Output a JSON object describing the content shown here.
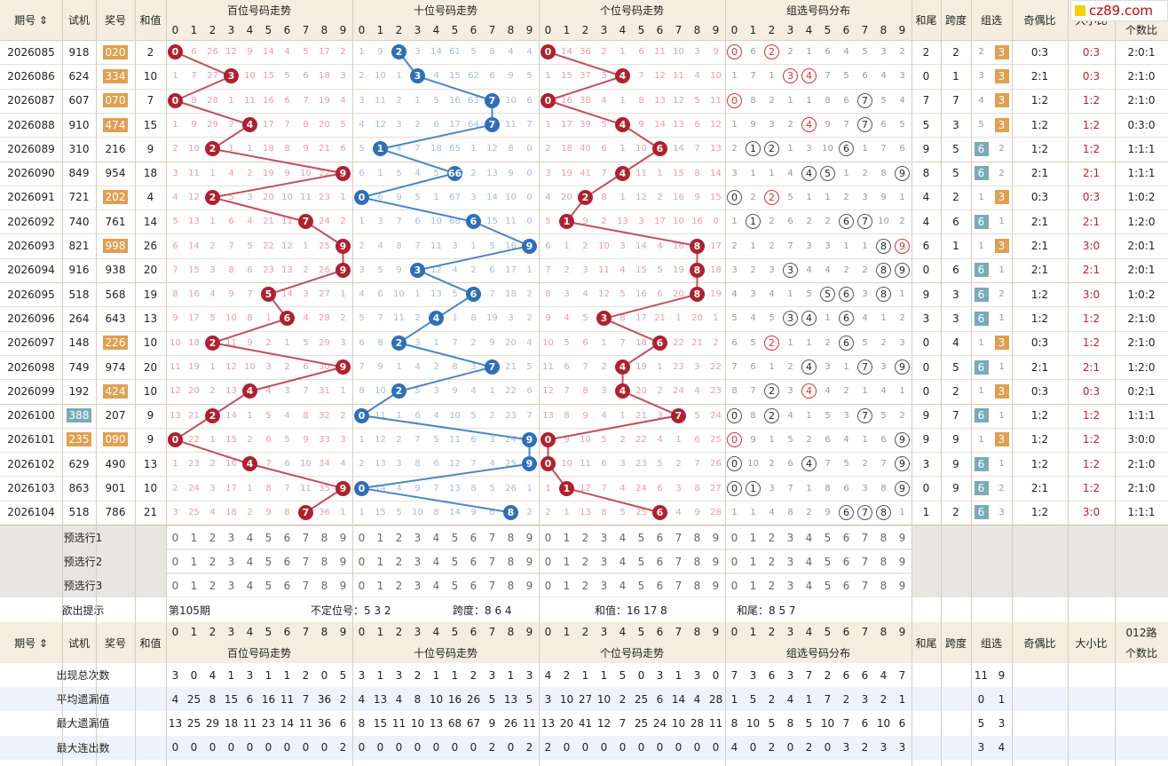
{
  "logo": "cz89.com",
  "colors": {
    "red_ball": "#b0202e",
    "blue_ball": "#2e6fb8",
    "red_line": "#c0505a",
    "blue_line": "#4a86c4",
    "tag_orange": "#e0a050",
    "tag_teal": "#7aaab8",
    "header_bg": "#f4ede0",
    "miss_red": "#e7a0a8",
    "miss_blue": "#a8bcd4",
    "miss_gray": "#999999",
    "alt_row": "#eef3fb"
  },
  "headers": {
    "period": "期号",
    "test": "试机",
    "prize": "奖号",
    "sum": "和值",
    "hundreds": "百位号码走势",
    "tens": "十位号码走势",
    "units": "个位号码走势",
    "group_dist": "组选号码分布",
    "sum_tail": "和尾",
    "span": "跨度",
    "group": "组选",
    "odd_even": "奇偶比",
    "big_small": "大小比",
    "road_l1": "012路",
    "road_l2": "个数比",
    "road_top": "个数比"
  },
  "digits": [
    "0",
    "1",
    "2",
    "3",
    "4",
    "5",
    "6",
    "7",
    "8",
    "9"
  ],
  "rows": [
    {
      "p": "2026085",
      "t": "918",
      "n": "020",
      "tn": "orange",
      "s": "2",
      "h": [
        0,
        6,
        26,
        12,
        9,
        14,
        4,
        5,
        17,
        2
      ],
      "te": [
        1,
        9,
        2,
        3,
        14,
        61,
        5,
        8,
        4,
        4
      ],
      "u": [
        0,
        14,
        36,
        2,
        1,
        6,
        11,
        10,
        3,
        9
      ],
      "g": [
        "c0",
        6,
        "c2",
        2,
        1,
        6,
        4,
        5,
        3,
        2
      ],
      "gr": "o",
      "tail": "2",
      "span": "2",
      "grp": [
        2,
        "3"
      ],
      "oe": "0:3",
      "bs": "0:3",
      "r": "2:0:1"
    },
    {
      "p": "2026086",
      "t": "624",
      "n": "334",
      "tn": "orange",
      "s": "10",
      "h": [
        1,
        7,
        27,
        3,
        10,
        15,
        5,
        6,
        18,
        3
      ],
      "te": [
        2,
        10,
        1,
        3,
        4,
        15,
        62,
        6,
        9,
        5
      ],
      "u": [
        1,
        15,
        37,
        3,
        4,
        7,
        12,
        11,
        4,
        10
      ],
      "g": [
        1,
        7,
        1,
        "c3",
        "c4",
        7,
        5,
        6,
        4,
        3
      ],
      "gr": "o",
      "tail": "0",
      "span": "1",
      "grp": [
        3,
        "3"
      ],
      "oe": "2:1",
      "bs": "0:3",
      "r": "2:1:0"
    },
    {
      "p": "2026087",
      "t": "607",
      "n": "070",
      "tn": "orange",
      "s": "7",
      "h": [
        0,
        8,
        28,
        1,
        11,
        16,
        6,
        7,
        19,
        4
      ],
      "te": [
        3,
        11,
        2,
        1,
        5,
        16,
        63,
        7,
        10,
        6
      ],
      "u": [
        0,
        16,
        38,
        4,
        1,
        8,
        13,
        12,
        5,
        11
      ],
      "g": [
        "c0",
        8,
        2,
        1,
        1,
        8,
        6,
        "k7",
        5,
        4
      ],
      "gr": "o",
      "tail": "7",
      "span": "7",
      "grp": [
        4,
        "3"
      ],
      "oe": "1:2",
      "bs": "1:2",
      "r": "2:1:0"
    },
    {
      "p": "2026088",
      "t": "910",
      "n": "474",
      "tn": "orange",
      "s": "15",
      "h": [
        1,
        9,
        29,
        2,
        4,
        17,
        7,
        8,
        20,
        5
      ],
      "te": [
        4,
        12,
        3,
        2,
        6,
        17,
        64,
        7,
        11,
        7
      ],
      "u": [
        1,
        17,
        39,
        5,
        4,
        9,
        14,
        13,
        6,
        12
      ],
      "g": [
        1,
        9,
        3,
        2,
        "c4",
        9,
        7,
        "k7",
        6,
        5
      ],
      "gr": "o",
      "tail": "5",
      "span": "3",
      "grp": [
        5,
        "3"
      ],
      "oe": "1:2",
      "bs": "1:2",
      "r": "0:3:0"
    },
    {
      "p": "2026089",
      "t": "310",
      "n": "216",
      "tn": "none",
      "s": "9",
      "h": [
        2,
        10,
        2,
        1,
        1,
        18,
        8,
        9,
        21,
        6
      ],
      "te": [
        5,
        1,
        4,
        7,
        18,
        65,
        1,
        12,
        8,
        0
      ],
      "u": [
        2,
        18,
        40,
        6,
        1,
        10,
        6,
        14,
        7,
        13
      ],
      "g": [
        2,
        "k1",
        "k2",
        1,
        3,
        10,
        "k6",
        1,
        7,
        6
      ],
      "gr": "t",
      "tail": "9",
      "span": "5",
      "grp": [
        "6",
        2
      ],
      "oe": "1:2",
      "bs": "1:2",
      "r": "1:1:1"
    },
    {
      "p": "2026090",
      "t": "849",
      "n": "954",
      "tn": "none",
      "s": "18",
      "h": [
        3,
        11,
        1,
        4,
        2,
        19,
        9,
        10,
        22,
        9
      ],
      "te": [
        6,
        1,
        5,
        4,
        5,
        66,
        2,
        13,
        9,
        0
      ],
      "u": [
        3,
        19,
        41,
        7,
        4,
        11,
        1,
        15,
        8,
        14
      ],
      "g": [
        3,
        1,
        1,
        4,
        "k4",
        "k5",
        1,
        2,
        8,
        "k9"
      ],
      "gr": "t",
      "tail": "8",
      "span": "5",
      "grp": [
        "6",
        2
      ],
      "oe": "2:1",
      "bs": "2:1",
      "r": "1:1:1"
    },
    {
      "p": "2026091",
      "t": "721",
      "n": "202",
      "tn": "orange",
      "s": "4",
      "h": [
        4,
        12,
        2,
        5,
        3,
        20,
        10,
        11,
        23,
        1
      ],
      "te": [
        0,
        6,
        9,
        5,
        1,
        67,
        3,
        14,
        10,
        0
      ],
      "u": [
        4,
        20,
        2,
        8,
        1,
        12,
        2,
        16,
        9,
        15
      ],
      "g": [
        "k0",
        2,
        "c2",
        5,
        1,
        1,
        2,
        3,
        9,
        1
      ],
      "gr": "o",
      "tail": "4",
      "span": "2",
      "grp": [
        1,
        "3"
      ],
      "oe": "0:3",
      "bs": "0:3",
      "r": "1:0:2"
    },
    {
      "p": "2026092",
      "t": "740",
      "n": "761",
      "tn": "none",
      "s": "14",
      "h": [
        5,
        13,
        1,
        6,
        4,
        21,
        11,
        7,
        24,
        2
      ],
      "te": [
        1,
        3,
        7,
        6,
        10,
        68,
        6,
        15,
        11,
        0
      ],
      "u": [
        5,
        1,
        9,
        2,
        13,
        3,
        17,
        10,
        16,
        0
      ],
      "g": [
        1,
        "k1",
        2,
        6,
        2,
        2,
        "k6",
        "k7",
        10,
        2
      ],
      "gr": "t",
      "tail": "4",
      "span": "6",
      "grp": [
        "6",
        1
      ],
      "oe": "2:1",
      "bs": "2:1",
      "r": "1:2:0"
    },
    {
      "p": "2026093",
      "t": "821",
      "n": "998",
      "tn": "orange",
      "s": "26",
      "h": [
        6,
        14,
        2,
        7,
        5,
        22,
        12,
        1,
        25,
        9
      ],
      "te": [
        2,
        4,
        8,
        7,
        11,
        3,
        1,
        5,
        16,
        9
      ],
      "u": [
        6,
        1,
        2,
        10,
        3,
        14,
        4,
        16,
        8,
        17
      ],
      "g": [
        2,
        1,
        2,
        7,
        3,
        3,
        1,
        1,
        "k8",
        "c9"
      ],
      "gr": "o",
      "tail": "6",
      "span": "1",
      "grp": [
        1,
        "3"
      ],
      "oe": "2:1",
      "bs": "3:0",
      "r": "2:0:1"
    },
    {
      "p": "2026094",
      "t": "916",
      "n": "938",
      "tn": "none",
      "s": "20",
      "h": [
        7,
        15,
        3,
        8,
        6,
        23,
        13,
        2,
        26,
        9
      ],
      "te": [
        3,
        5,
        9,
        3,
        12,
        4,
        2,
        6,
        17,
        1
      ],
      "u": [
        7,
        2,
        3,
        11,
        4,
        15,
        5,
        19,
        8,
        18
      ],
      "g": [
        3,
        2,
        3,
        "k3",
        4,
        4,
        2,
        2,
        "k8",
        "k9"
      ],
      "gr": "t",
      "tail": "0",
      "span": "6",
      "grp": [
        "6",
        1
      ],
      "oe": "2:1",
      "bs": "2:1",
      "r": "2:0:1"
    },
    {
      "p": "2026095",
      "t": "518",
      "n": "568",
      "tn": "none",
      "s": "19",
      "h": [
        8,
        16,
        4,
        9,
        7,
        5,
        14,
        3,
        27,
        1
      ],
      "te": [
        4,
        6,
        10,
        1,
        13,
        5,
        6,
        7,
        18,
        2
      ],
      "u": [
        8,
        3,
        4,
        12,
        5,
        16,
        6,
        20,
        8,
        19
      ],
      "g": [
        4,
        3,
        4,
        1,
        5,
        "k5",
        "k6",
        3,
        "k8",
        1
      ],
      "gr": "t",
      "tail": "9",
      "span": "3",
      "grp": [
        "6",
        2
      ],
      "oe": "1:2",
      "bs": "3:0",
      "r": "1:0:2"
    },
    {
      "p": "2026096",
      "t": "264",
      "n": "643",
      "tn": "none",
      "s": "13",
      "h": [
        9,
        17,
        5,
        10,
        8,
        1,
        6,
        4,
        28,
        2
      ],
      "te": [
        5,
        7,
        11,
        2,
        4,
        1,
        8,
        19,
        3,
        2
      ],
      "u": [
        9,
        4,
        5,
        3,
        8,
        17,
        21,
        1,
        20,
        1
      ],
      "g": [
        5,
        4,
        5,
        "k3",
        "k4",
        1,
        "k6",
        4,
        1,
        2
      ],
      "gr": "t",
      "tail": "3",
      "span": "3",
      "grp": [
        "6",
        1
      ],
      "oe": "1:2",
      "bs": "1:2",
      "r": "2:1:0"
    },
    {
      "p": "2026097",
      "t": "148",
      "n": "226",
      "tn": "orange",
      "s": "10",
      "h": [
        10,
        18,
        2,
        11,
        9,
        2,
        1,
        5,
        29,
        3
      ],
      "te": [
        6,
        8,
        2,
        3,
        1,
        7,
        2,
        9,
        20,
        4
      ],
      "u": [
        10,
        5,
        6,
        1,
        7,
        18,
        6,
        22,
        21,
        2
      ],
      "g": [
        6,
        5,
        "c2",
        1,
        1,
        2,
        "k6",
        5,
        2,
        3
      ],
      "gr": "o",
      "tail": "0",
      "span": "4",
      "grp": [
        1,
        "3"
      ],
      "oe": "0:3",
      "bs": "1:2",
      "r": "2:1:0"
    },
    {
      "p": "2026098",
      "t": "749",
      "n": "974",
      "tn": "none",
      "s": "20",
      "h": [
        11,
        19,
        1,
        12,
        10,
        3,
        2,
        6,
        30,
        9
      ],
      "te": [
        7,
        9,
        1,
        4,
        2,
        8,
        3,
        7,
        21,
        5
      ],
      "u": [
        11,
        6,
        7,
        2,
        4,
        19,
        1,
        23,
        3,
        22
      ],
      "g": [
        7,
        6,
        1,
        2,
        "k4",
        3,
        1,
        "k7",
        3,
        "k9"
      ],
      "gr": "t",
      "tail": "0",
      "span": "5",
      "grp": [
        "6",
        1
      ],
      "oe": "2:1",
      "bs": "2:1",
      "r": "1:2:0"
    },
    {
      "p": "2026099",
      "t": "192",
      "n": "424",
      "tn": "orange",
      "s": "10",
      "h": [
        12,
        20,
        2,
        13,
        4,
        4,
        3,
        7,
        31,
        1
      ],
      "te": [
        8,
        10,
        2,
        5,
        3,
        9,
        4,
        1,
        22,
        6
      ],
      "u": [
        12,
        7,
        8,
        3,
        4,
        20,
        2,
        24,
        4,
        23
      ],
      "g": [
        8,
        7,
        "k2",
        3,
        "c4",
        4,
        2,
        1,
        4,
        1
      ],
      "gr": "o",
      "tail": "0",
      "span": "2",
      "grp": [
        1,
        "3"
      ],
      "oe": "0:3",
      "bs": "0:3",
      "r": "0:2:1"
    },
    {
      "p": "2026100",
      "t": "388",
      "tt": "teal",
      "n": "207",
      "tn": "none",
      "s": "9",
      "h": [
        13,
        21,
        2,
        14,
        1,
        5,
        4,
        8,
        32,
        2
      ],
      "te": [
        0,
        11,
        1,
        6,
        4,
        10,
        5,
        2,
        23,
        7
      ],
      "u": [
        13,
        8,
        9,
        4,
        1,
        21,
        3,
        7,
        5,
        24
      ],
      "g": [
        "k0",
        8,
        "k2",
        4,
        1,
        5,
        3,
        "k7",
        5,
        2
      ],
      "gr": "t",
      "tail": "9",
      "span": "7",
      "grp": [
        "6",
        1
      ],
      "oe": "1:2",
      "bs": "1:2",
      "r": "1:1:1"
    },
    {
      "p": "2026101",
      "t": "235",
      "tt": "orange",
      "n": "090",
      "tn": "orange",
      "s": "9",
      "h": [
        0,
        22,
        1,
        15,
        2,
        6,
        5,
        9,
        33,
        3
      ],
      "te": [
        1,
        12,
        2,
        7,
        5,
        11,
        6,
        3,
        24,
        9
      ],
      "u": [
        0,
        9,
        10,
        5,
        2,
        22,
        4,
        1,
        6,
        25
      ],
      "g": [
        "c0",
        9,
        1,
        5,
        2,
        6,
        4,
        1,
        6,
        "k9"
      ],
      "gr": "o",
      "tail": "9",
      "span": "9",
      "grp": [
        1,
        "3"
      ],
      "oe": "1:2",
      "bs": "1:2",
      "r": "3:0:0"
    },
    {
      "p": "2026102",
      "t": "629",
      "n": "490",
      "tn": "none",
      "s": "13",
      "h": [
        1,
        23,
        2,
        16,
        4,
        7,
        6,
        10,
        34,
        4
      ],
      "te": [
        2,
        13,
        3,
        8,
        6,
        12,
        7,
        4,
        25,
        9
      ],
      "u": [
        0,
        10,
        11,
        6,
        3,
        23,
        5,
        2,
        7,
        26
      ],
      "g": [
        "k0",
        10,
        2,
        6,
        "k4",
        7,
        5,
        2,
        7,
        "k9"
      ],
      "gr": "t",
      "tail": "3",
      "span": "9",
      "grp": [
        "6",
        1
      ],
      "oe": "1:2",
      "bs": "1:2",
      "r": "2:1:0"
    },
    {
      "p": "2026103",
      "t": "863",
      "n": "901",
      "tn": "none",
      "s": "10",
      "h": [
        2,
        24,
        3,
        17,
        1,
        8,
        7,
        11,
        35,
        9
      ],
      "te": [
        0,
        14,
        4,
        9,
        7,
        13,
        8,
        5,
        26,
        1
      ],
      "u": [
        1,
        1,
        12,
        7,
        4,
        24,
        6,
        3,
        8,
        27
      ],
      "g": [
        "k0",
        "k1",
        3,
        7,
        1,
        8,
        6,
        3,
        8,
        "k9"
      ],
      "gr": "t",
      "tail": "0",
      "span": "9",
      "grp": [
        "6",
        2
      ],
      "oe": "2:1",
      "bs": "1:2",
      "r": "2:1:0"
    },
    {
      "p": "2026104",
      "t": "518",
      "n": "786",
      "tn": "none",
      "s": "21",
      "h": [
        3,
        25,
        4,
        18,
        2,
        9,
        8,
        7,
        36,
        1
      ],
      "te": [
        1,
        15,
        5,
        10,
        8,
        14,
        9,
        6,
        8,
        2
      ],
      "u": [
        2,
        1,
        13,
        8,
        5,
        25,
        6,
        4,
        9,
        28
      ],
      "g": [
        1,
        1,
        4,
        8,
        2,
        9,
        "k6",
        "k7",
        "k8",
        1
      ],
      "gr": "t",
      "tail": "1",
      "span": "2",
      "grp": [
        "6",
        3
      ],
      "oe": "1:2",
      "bs": "3:0",
      "r": "1:1:1"
    }
  ],
  "preselect": [
    "预选行1",
    "预选行2",
    "预选行3"
  ],
  "hint": {
    "label": "欲出提示",
    "issue": "第105期",
    "pos": "不定位号：5 3 2",
    "span": "跨度：8 6 4",
    "sum": "和值：16 17 8",
    "tail": "和尾：8 5 7"
  },
  "stats": [
    {
      "label": "出现总次数",
      "h": [
        3,
        0,
        4,
        1,
        3,
        1,
        1,
        2,
        0,
        5
      ],
      "te": [
        3,
        1,
        3,
        2,
        1,
        1,
        2,
        3,
        1,
        3
      ],
      "u": [
        4,
        2,
        1,
        1,
        5,
        0,
        3,
        1,
        3,
        0
      ],
      "g": [
        7,
        3,
        6,
        3,
        7,
        2,
        6,
        6,
        4,
        7
      ],
      "grp": [
        "11",
        "9"
      ]
    },
    {
      "label": "平均遗漏值",
      "h": [
        4,
        25,
        8,
        15,
        6,
        16,
        11,
        7,
        36,
        2
      ],
      "te": [
        4,
        13,
        4,
        8,
        10,
        16,
        26,
        5,
        13,
        5
      ],
      "u": [
        3,
        10,
        27,
        10,
        2,
        25,
        6,
        14,
        4,
        28
      ],
      "g": [
        1,
        5,
        2,
        4,
        1,
        7,
        2,
        3,
        2,
        1
      ],
      "grp": [
        "0",
        "1"
      ]
    },
    {
      "label": "最大遗漏值",
      "h": [
        13,
        25,
        29,
        18,
        11,
        23,
        14,
        11,
        36,
        6
      ],
      "te": [
        8,
        15,
        11,
        10,
        13,
        68,
        67,
        9,
        26,
        11
      ],
      "u": [
        13,
        20,
        41,
        12,
        7,
        25,
        24,
        10,
        28,
        11
      ],
      "g": [
        8,
        10,
        5,
        8,
        5,
        10,
        7,
        6,
        10,
        6
      ],
      "grp": [
        "5",
        "3"
      ]
    },
    {
      "label": "最大连出数",
      "h": [
        0,
        0,
        0,
        0,
        0,
        0,
        0,
        0,
        0,
        2
      ],
      "te": [
        0,
        0,
        0,
        0,
        0,
        0,
        0,
        2,
        0,
        2
      ],
      "u": [
        2,
        0,
        0,
        0,
        0,
        0,
        0,
        0,
        0,
        0
      ],
      "g": [
        4,
        0,
        2,
        0,
        2,
        0,
        3,
        2,
        3,
        3
      ],
      "grp": [
        "3",
        "4"
      ]
    }
  ]
}
